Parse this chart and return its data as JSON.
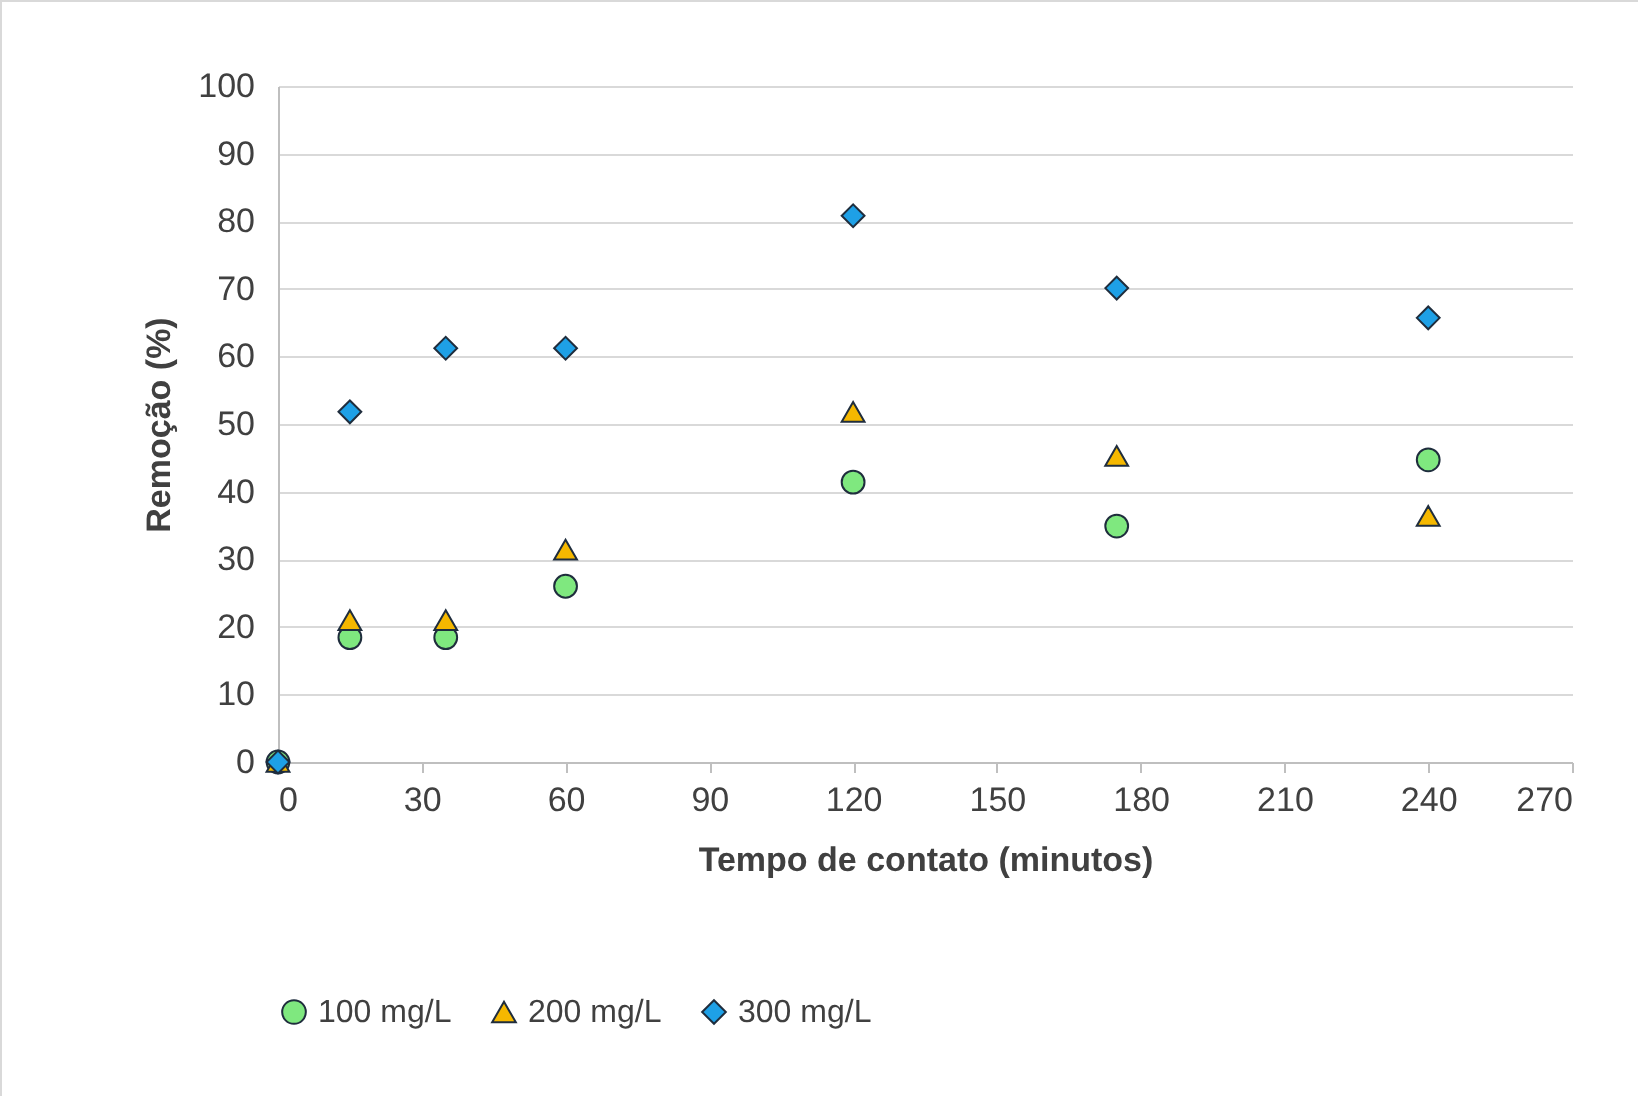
{
  "chart_data": {
    "type": "scatter",
    "xlabel": "Tempo de contato (minutos)",
    "ylabel": "Remoção (%)",
    "x": [
      0,
      15,
      35,
      60,
      120,
      175,
      240
    ],
    "xlim": [
      0,
      270
    ],
    "xticks": [
      0,
      30,
      60,
      90,
      120,
      150,
      180,
      210,
      240,
      270
    ],
    "ylim": [
      0,
      100
    ],
    "yticks": [
      0,
      10,
      20,
      30,
      40,
      50,
      60,
      70,
      80,
      90,
      100
    ],
    "grid": "y",
    "legend": "bottom",
    "series": [
      {
        "name": "100 mg/L",
        "color": "#7fe87f",
        "marker": "circle",
        "values": [
          0,
          18.4,
          18.4,
          26.0,
          41.4,
          34.9,
          44.7
        ]
      },
      {
        "name": "200 mg/L",
        "color": "#f5b800",
        "marker": "triangle",
        "values": [
          0,
          21.0,
          21.0,
          31.4,
          51.8,
          45.3,
          36.4
        ]
      },
      {
        "name": "300 mg/L",
        "color": "#1ea0e6",
        "marker": "diamond",
        "values": [
          0,
          51.8,
          61.2,
          61.2,
          80.8,
          70.1,
          65.7
        ]
      }
    ]
  }
}
